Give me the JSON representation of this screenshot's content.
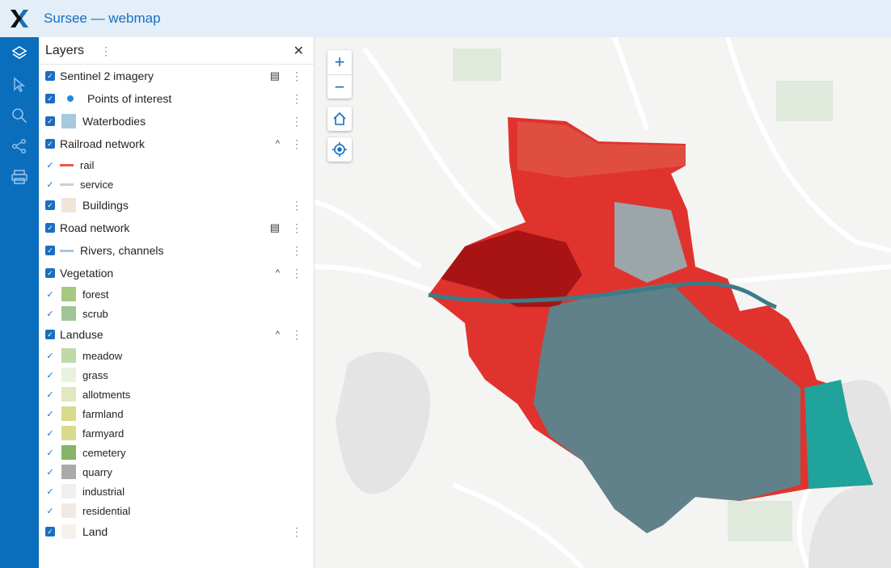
{
  "header": {
    "title": "Sursee — webmap"
  },
  "rail": {
    "icons": [
      "layers-icon",
      "select-icon",
      "search-icon",
      "share-icon",
      "print-icon"
    ]
  },
  "panel": {
    "title": "Layers",
    "layers": [
      {
        "label": "Sentinel 2 imagery",
        "checked": true,
        "swatch": null,
        "table": true,
        "expand": false
      },
      {
        "label": "Points of interest",
        "checked": true,
        "swatch": "dot",
        "color": "#2a86d9"
      },
      {
        "label": "Waterbodies",
        "checked": true,
        "swatch": "box",
        "color": "#a6c8e0"
      },
      {
        "label": "Railroad network",
        "checked": true,
        "swatch": null,
        "expand": true,
        "children": [
          {
            "label": "rail",
            "swatch": "line",
            "color": "#e8594a"
          },
          {
            "label": "service",
            "swatch": "line",
            "color": "#cfcfcf"
          }
        ]
      },
      {
        "label": "Buildings",
        "checked": true,
        "swatch": "box",
        "color": "#efe6d8"
      },
      {
        "label": "Road network",
        "checked": true,
        "swatch": null,
        "table": true
      },
      {
        "label": "Rivers, channels",
        "checked": true,
        "swatch": "line",
        "color": "#a6c8e0"
      },
      {
        "label": "Vegetation",
        "checked": true,
        "swatch": null,
        "expand": true,
        "children": [
          {
            "label": "forest",
            "color": "#a6c97e"
          },
          {
            "label": "scrub",
            "color": "#9fc596"
          }
        ]
      },
      {
        "label": "Landuse",
        "checked": true,
        "swatch": null,
        "expand": true,
        "children": [
          {
            "label": "meadow",
            "color": "#bfd9a6"
          },
          {
            "label": "grass",
            "color": "#e8f2e0"
          },
          {
            "label": "allotments",
            "color": "#e1e8be"
          },
          {
            "label": "farmland",
            "color": "#d8da8c"
          },
          {
            "label": "farmyard",
            "color": "#dada8e"
          },
          {
            "label": "cemetery",
            "color": "#84b468"
          },
          {
            "label": "quarry",
            "color": "#aaaaaa"
          },
          {
            "label": "industrial",
            "color": "#f0f0f0"
          },
          {
            "label": "residential",
            "color": "#efebe4"
          }
        ]
      },
      {
        "label": "Land",
        "checked": true,
        "swatch": "box",
        "color": "#f5f2ec"
      }
    ]
  },
  "map": {
    "controls": [
      "zoom-in",
      "zoom-out",
      "home",
      "locate"
    ]
  }
}
